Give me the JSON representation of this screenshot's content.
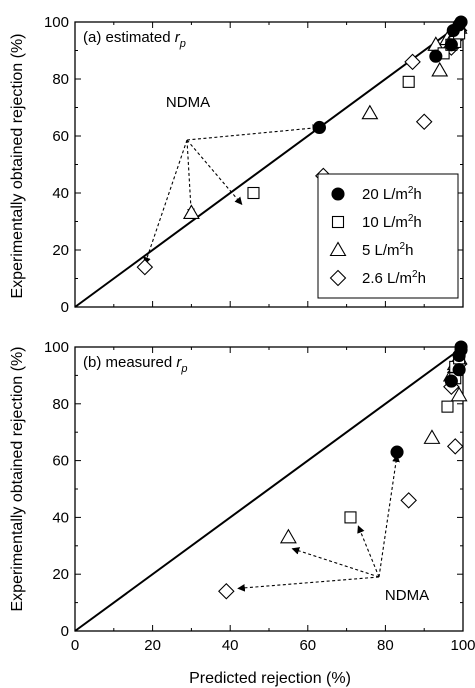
{
  "chart_data": {
    "type": "scatter",
    "xlabel": "Predicted rejection (%)",
    "ylabel": "Experimentally obtained rejection (%)",
    "xlim": [
      0,
      100
    ],
    "ylim": [
      0,
      100
    ],
    "xticks": [
      "0",
      "20",
      "40",
      "60",
      "80",
      "100"
    ],
    "yticks": [
      "0",
      "20",
      "40",
      "60",
      "80",
      "100"
    ],
    "legend": {
      "placement": "right",
      "entries": [
        {
          "series": 0,
          "prefix": "20 L/m",
          "sup": "2",
          "suffix": "h"
        },
        {
          "series": 1,
          "prefix": "10 L/m",
          "sup": "2",
          "suffix": "h"
        },
        {
          "series": 2,
          "prefix": "5 L/m",
          "sup": "2",
          "suffix": "h"
        },
        {
          "series": 3,
          "prefix": "2.6 L/m",
          "sup": "2",
          "suffix": "h"
        }
      ]
    },
    "series_styles": [
      {
        "marker": "circle",
        "fill": "#000000"
      },
      {
        "marker": "square",
        "fill": "none"
      },
      {
        "marker": "triangle",
        "fill": "none"
      },
      {
        "marker": "diamond",
        "fill": "none"
      }
    ],
    "panels": [
      {
        "label": "(a) estimated ",
        "label_var": "r",
        "label_sub": "p",
        "annotation": "NDMA",
        "arrow_targets": [
          [
            63,
            63
          ],
          [
            30,
            32
          ],
          [
            43,
            36
          ],
          [
            18,
            15
          ]
        ],
        "series": [
          {
            "name": "20 L/m2h",
            "points": [
              [
                63,
                63
              ],
              [
                93,
                88
              ],
              [
                97,
                92
              ],
              [
                97.5,
                97
              ],
              [
                99,
                99
              ],
              [
                99.5,
                100
              ]
            ]
          },
          {
            "name": "10 L/m2h",
            "points": [
              [
                46,
                40
              ],
              [
                86,
                79
              ],
              [
                95,
                89
              ],
              [
                97,
                92
              ],
              [
                98,
                93
              ],
              [
                99,
                96
              ]
            ]
          },
          {
            "name": "5 L/m2h",
            "points": [
              [
                30,
                33
              ],
              [
                76,
                68
              ],
              [
                94,
                83
              ],
              [
                93,
                92
              ],
              [
                96,
                94
              ],
              [
                98,
                96
              ],
              [
                99,
                98
              ]
            ]
          },
          {
            "name": "2.6 L/m2h",
            "points": [
              [
                18,
                14
              ],
              [
                64,
                46
              ],
              [
                90,
                65
              ],
              [
                87,
                86
              ],
              [
                97,
                91
              ],
              [
                98,
                94
              ],
              [
                99,
                97
              ]
            ]
          }
        ]
      },
      {
        "label": "(b) measured ",
        "label_var": "r",
        "label_sub": "p",
        "annotation": "NDMA",
        "arrow_targets": [
          [
            83,
            62
          ],
          [
            73,
            37
          ],
          [
            56,
            29
          ],
          [
            42,
            15
          ]
        ],
        "series": [
          {
            "name": "20 L/m2h",
            "points": [
              [
                83,
                63
              ],
              [
                97,
                88
              ],
              [
                99,
                92
              ],
              [
                99,
                97
              ],
              [
                99.5,
                99
              ],
              [
                99.5,
                100
              ]
            ]
          },
          {
            "name": "10 L/m2h",
            "points": [
              [
                71,
                40
              ],
              [
                96,
                79
              ],
              [
                98,
                89
              ],
              [
                98,
                93
              ],
              [
                99,
                96
              ]
            ]
          },
          {
            "name": "5 L/m2h",
            "points": [
              [
                55,
                33
              ],
              [
                92,
                68
              ],
              [
                99,
                83
              ],
              [
                97,
                90
              ],
              [
                98,
                94
              ],
              [
                99,
                96
              ]
            ]
          },
          {
            "name": "2.6 L/m2h",
            "points": [
              [
                39,
                14
              ],
              [
                86,
                46
              ],
              [
                98,
                65
              ],
              [
                97,
                86
              ],
              [
                98,
                91
              ],
              [
                99,
                94
              ]
            ]
          }
        ]
      }
    ]
  }
}
